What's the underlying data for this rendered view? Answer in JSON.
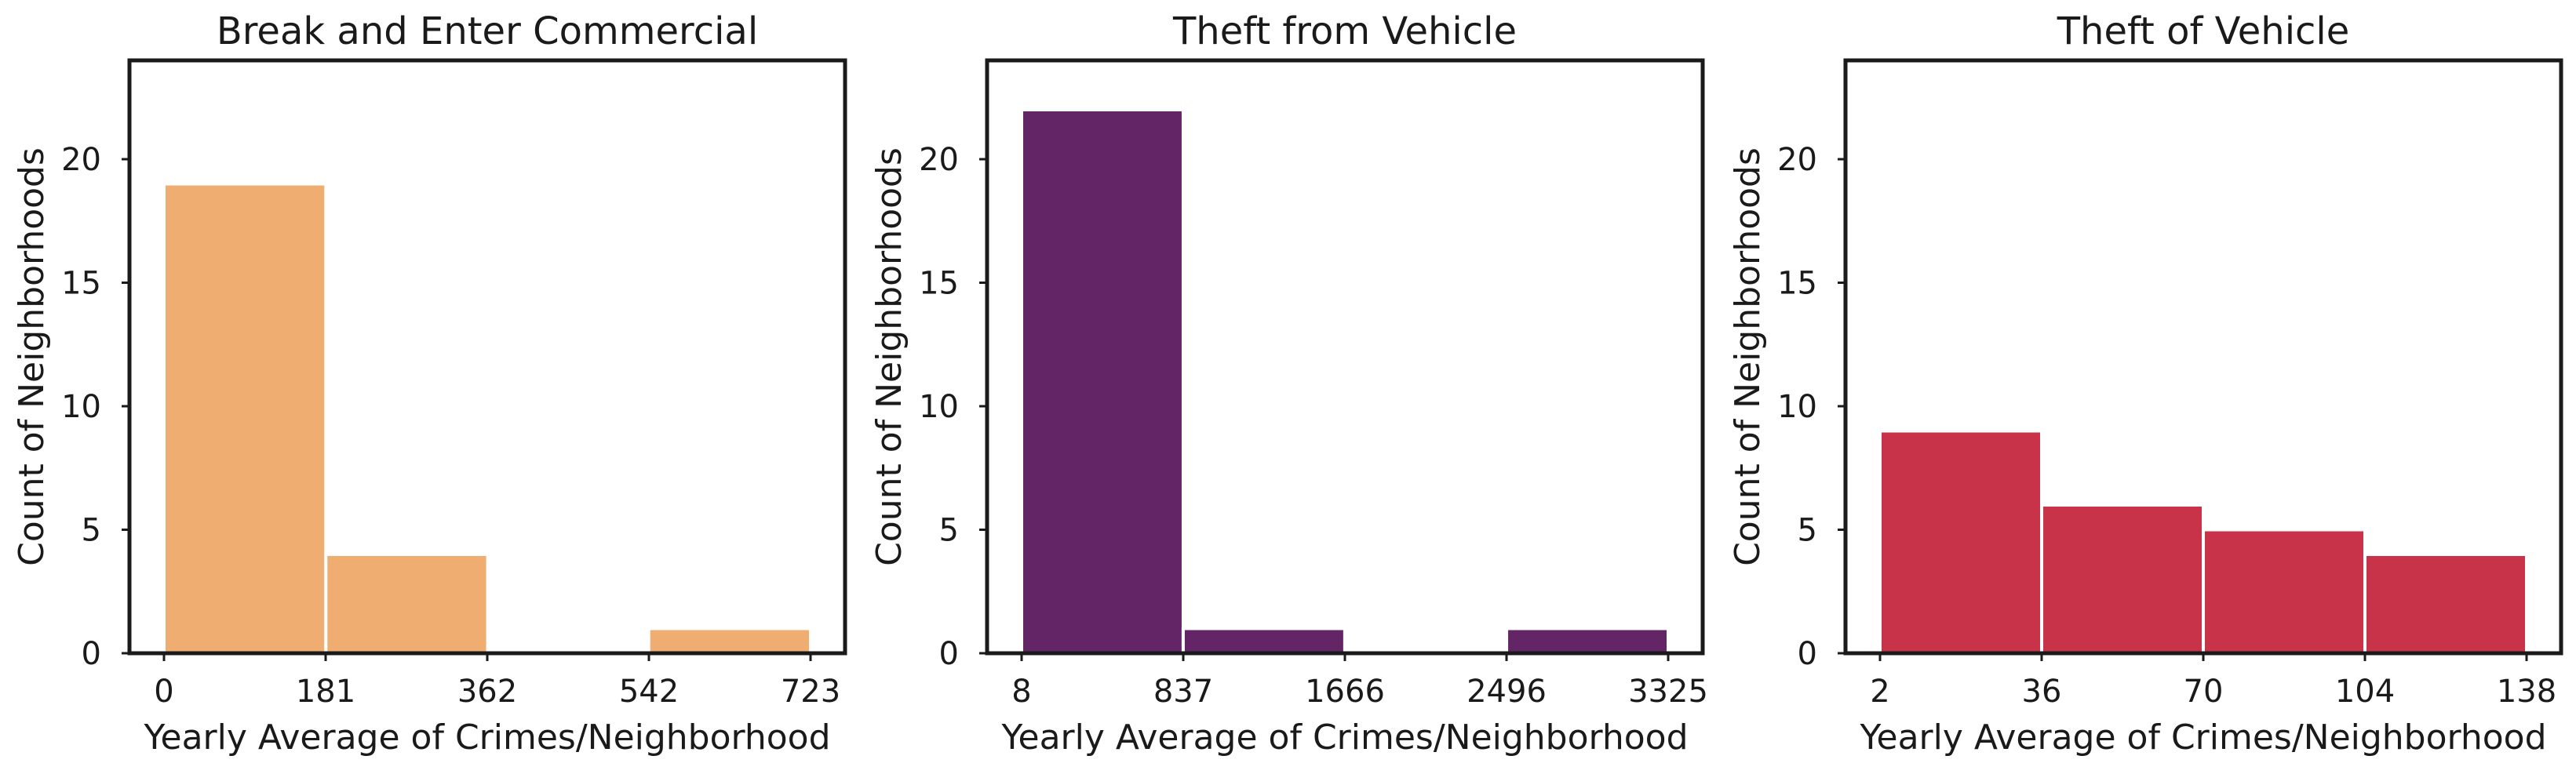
{
  "chart_data": [
    {
      "type": "bar",
      "title": "Break and Enter Commercial",
      "xlabel": "Yearly Average of Crimes/Neighborhood",
      "ylabel": "Count of Neighborhoods",
      "x_ticks": [
        "0",
        "181",
        "362",
        "542",
        "723"
      ],
      "y_ticks": [
        "0",
        "5",
        "10",
        "15",
        "20"
      ],
      "bins": [
        [
          0,
          181
        ],
        [
          181,
          362
        ],
        [
          362,
          542
        ],
        [
          542,
          723
        ]
      ],
      "values": [
        19,
        4,
        0,
        1
      ],
      "ylim": [
        0,
        24
      ],
      "color": "#f0ad72",
      "grid": false
    },
    {
      "type": "bar",
      "title": "Theft from Vehicle",
      "xlabel": "Yearly Average of Crimes/Neighborhood",
      "ylabel": "Count of Neighborhoods",
      "x_ticks": [
        "8",
        "837",
        "1666",
        "2496",
        "3325"
      ],
      "y_ticks": [
        "0",
        "5",
        "10",
        "15",
        "20"
      ],
      "bins": [
        [
          8,
          837
        ],
        [
          837,
          1666
        ],
        [
          1666,
          2496
        ],
        [
          2496,
          3325
        ]
      ],
      "values": [
        22,
        1,
        0,
        1
      ],
      "ylim": [
        0,
        24
      ],
      "color": "#632566",
      "grid": false
    },
    {
      "type": "bar",
      "title": "Theft of Vehicle",
      "xlabel": "Yearly Average of Crimes/Neighborhood",
      "ylabel": "Count of Neighborhoods",
      "x_ticks": [
        "2",
        "36",
        "70",
        "104",
        "138"
      ],
      "y_ticks": [
        "0",
        "5",
        "10",
        "15",
        "20"
      ],
      "bins": [
        [
          2,
          36
        ],
        [
          36,
          70
        ],
        [
          70,
          104
        ],
        [
          104,
          138
        ]
      ],
      "values": [
        9,
        6,
        5,
        4
      ],
      "ylim": [
        0,
        24
      ],
      "color": "#c9334a",
      "grid": false
    }
  ]
}
